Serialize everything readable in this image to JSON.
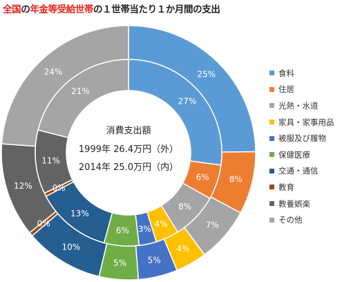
{
  "title": {
    "part_red_1": "全国",
    "part_dark_1": "の",
    "part_red_2": "年金等受給世帯",
    "part_dark_2": "の１世帯当たり１か月間の支出"
  },
  "center": {
    "line1": "消費支出額",
    "line2": "1999年 26.4万円（外）",
    "line3": "2014年 25.0万円（内）"
  },
  "chart_data": {
    "type": "pie",
    "style": "nested-donut",
    "categories": [
      "食料",
      "住居",
      "光熱・水道",
      "家具・家事用品",
      "被服及び履物",
      "保健医療",
      "交通・通信",
      "教育",
      "教養娯楽",
      "その他"
    ],
    "colors": [
      "#5b9bd5",
      "#ed7d31",
      "#a5a5a5",
      "#ffc000",
      "#4472c4",
      "#70ad47",
      "#255e91",
      "#9e480e",
      "#636363",
      "#a5a5a5"
    ],
    "series": [
      {
        "name": "1999年",
        "ring": "outer",
        "values": [
          25,
          8,
          7,
          4,
          5,
          5,
          10,
          0,
          12,
          24
        ],
        "labels": [
          "25%",
          "8%",
          "7%",
          "4%",
          "5%",
          "5%",
          "10%",
          "0%",
          "12%",
          "24%"
        ]
      },
      {
        "name": "2014年",
        "ring": "inner",
        "values": [
          27,
          6,
          8,
          4,
          3,
          6,
          13,
          0,
          11,
          21
        ],
        "labels": [
          "27%",
          "6%",
          "8%",
          "4%",
          "3%",
          "6%",
          "13%",
          "0%",
          "11%",
          "21%"
        ]
      }
    ],
    "legend_position": "right"
  }
}
